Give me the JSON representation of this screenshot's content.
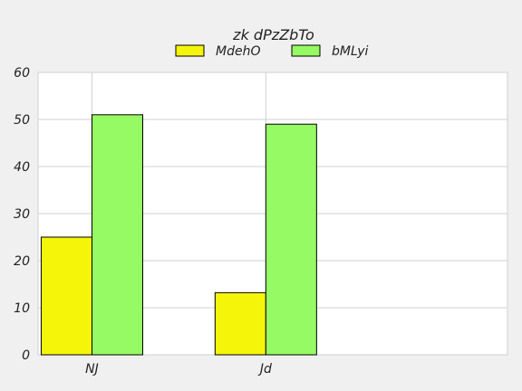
{
  "chart_data": {
    "type": "bar",
    "title": "zk  dPzZbTo",
    "xlabel": "",
    "ylabel": "",
    "categories": [
      "NJ",
      "Jd"
    ],
    "series": [
      {
        "name": "MdehO",
        "values": [
          25,
          13.2
        ],
        "color": "#f5f50a"
      },
      {
        "name": "bMLyi",
        "values": [
          51,
          49
        ],
        "color": "#96fa64"
      }
    ],
    "ylim": [
      0,
      60
    ],
    "yticks": [
      0,
      10,
      20,
      30,
      40,
      50,
      60
    ],
    "grid": true,
    "legend_position": "top-center"
  }
}
